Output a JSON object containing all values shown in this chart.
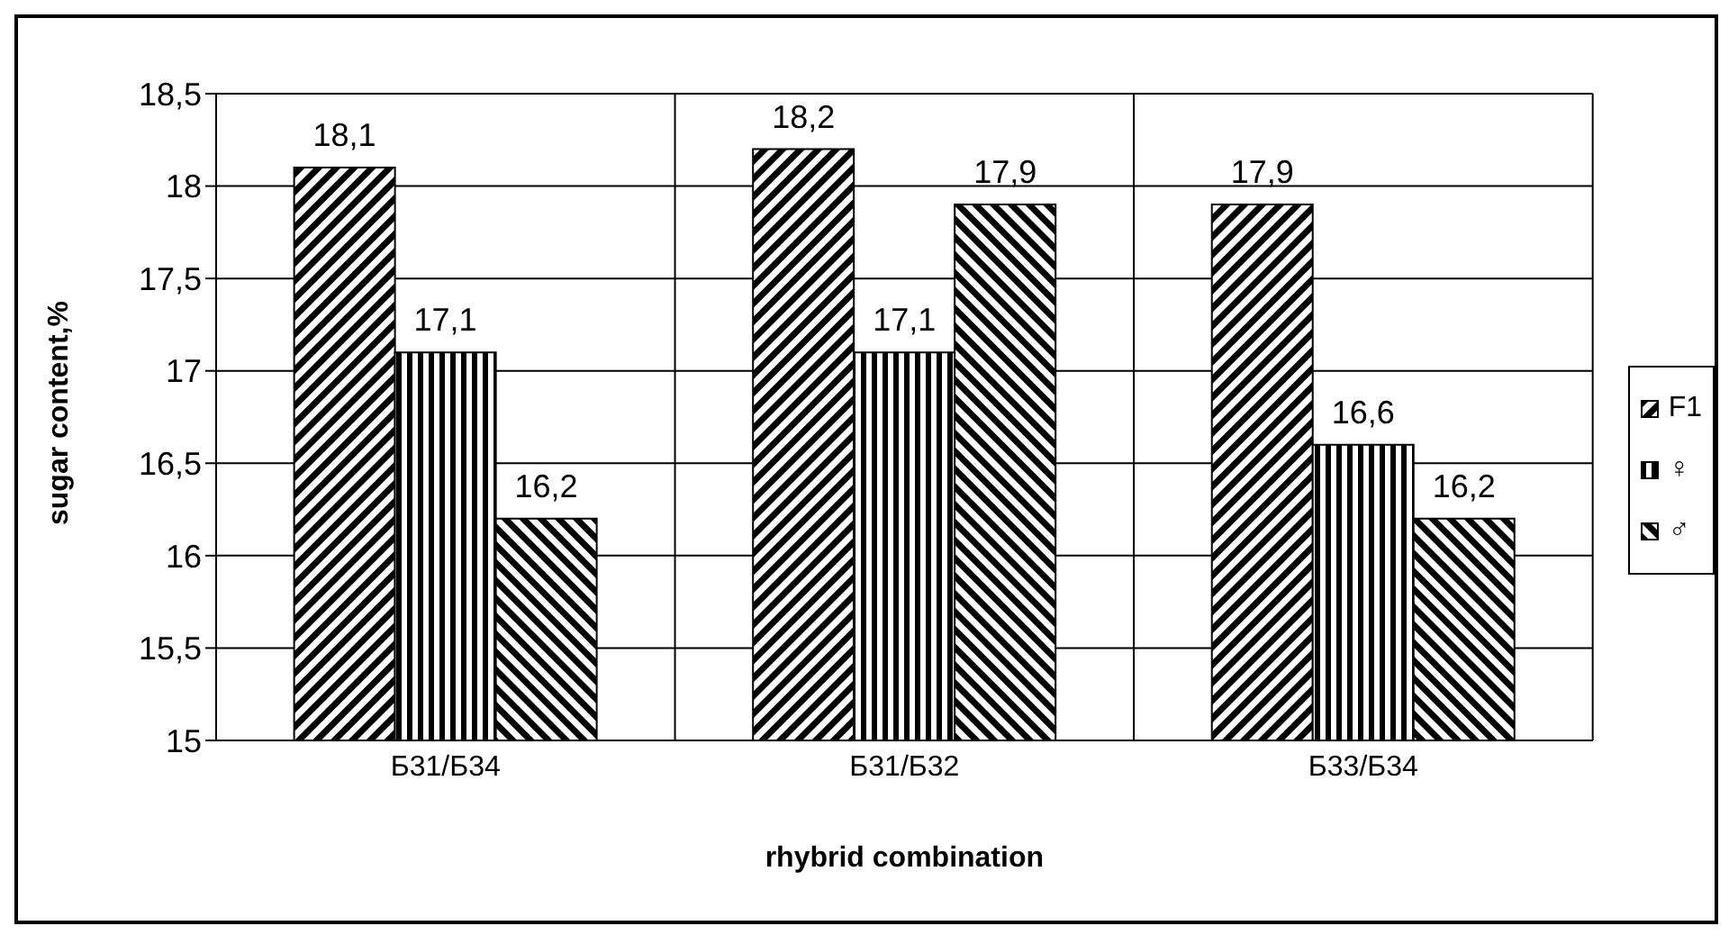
{
  "chart_data": {
    "type": "bar",
    "xlabel": "rhybrid combination",
    "ylabel": "sugar content,%",
    "categories": [
      "Б31/Б34",
      "Б31/Б32",
      "Б33/Б34"
    ],
    "series": [
      {
        "name": "F1",
        "color": "#000000",
        "values": [
          18.1,
          18.2,
          17.9
        ],
        "value_labels": [
          "18,1",
          "18,2",
          "17,9"
        ]
      },
      {
        "name": "♀",
        "color": "#000000",
        "values": [
          17.1,
          17.1,
          16.6
        ],
        "value_labels": [
          "17,1",
          "17,1",
          "16,6"
        ]
      },
      {
        "name": "♂",
        "color": "#000000",
        "values": [
          16.2,
          17.9,
          16.2
        ],
        "value_labels": [
          "16,2",
          "17,9",
          "16,2"
        ]
      }
    ],
    "ylim": [
      15,
      18.5
    ],
    "yticks": [
      15,
      {
        "value": 15.5,
        "label": "15,5"
      },
      16,
      {
        "value": 16.5,
        "label": "16,5"
      },
      17,
      {
        "value": 17.5,
        "label": "17,5"
      },
      18,
      {
        "value": 18.5,
        "label": "18,5"
      }
    ],
    "grid": true,
    "legend": "right"
  }
}
